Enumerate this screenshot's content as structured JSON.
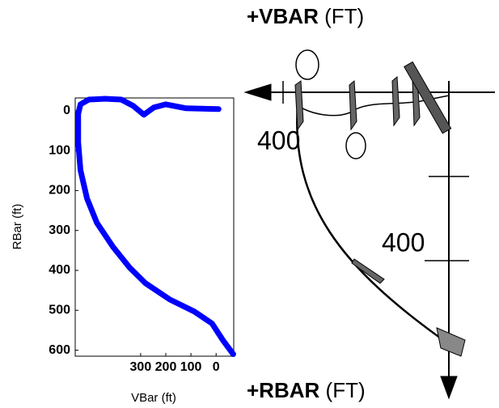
{
  "chart_data": {
    "type": "line",
    "x_label": "VBar (ft)",
    "y_label": "RBar (ft)",
    "x": [
      -68,
      -26,
      16,
      87,
      184,
      281,
      345,
      410,
      474,
      513,
      539,
      548,
      548,
      539,
      506,
      442,
      377,
      329,
      287,
      248,
      200,
      119,
      -10
    ],
    "series": [
      {
        "color": "#0000ff",
        "values": [
          610,
          574,
          533,
          503,
          473,
          432,
          392,
          341,
          281,
          220,
          149,
          79,
          8,
          -16,
          -28,
          -30,
          -28,
          -12,
          10,
          -8,
          -16,
          -6,
          -4
        ]
      }
    ],
    "xlim": [
      560,
      -70
    ],
    "xticks": [
      300,
      200,
      100,
      0
    ],
    "ylim": [
      -32,
      615
    ],
    "yticks": [
      0,
      100,
      200,
      300,
      400,
      500,
      600
    ]
  },
  "diagram": {
    "top_label": "+VBAR",
    "top_unit": "(FT)",
    "bottom_label": "+RBAR",
    "bottom_unit": "(FT)",
    "range_labels": [
      "400",
      "400"
    ]
  }
}
